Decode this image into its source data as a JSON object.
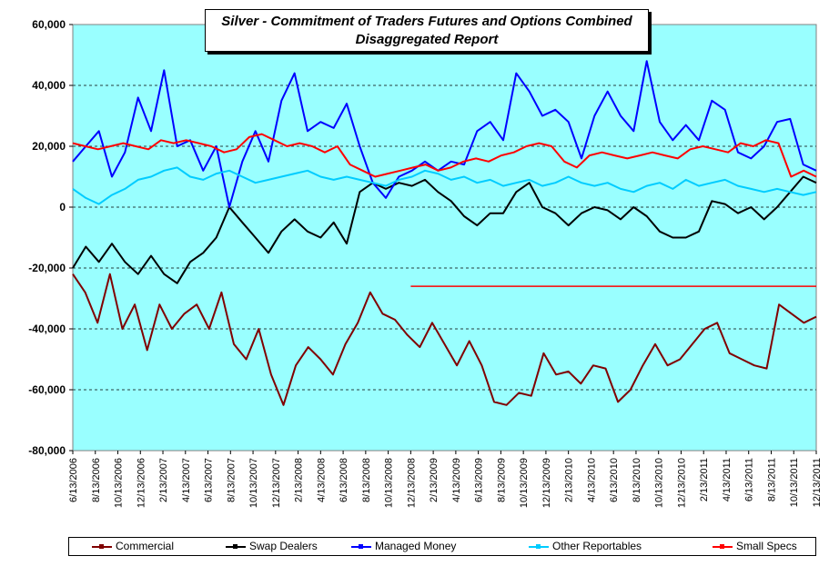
{
  "chart_data": {
    "type": "line",
    "title": "Silver - Commitment of Traders Futures and Options Combined",
    "subtitle": "Disaggregated Report",
    "ylim": [
      -80000,
      60000
    ],
    "y_ticks": [
      "60,000",
      "40,000",
      "20,000",
      "0",
      "-20,000",
      "-40,000",
      "-60,000",
      "-80,000"
    ],
    "x_ticks": [
      "6/13/2006",
      "8/13/2006",
      "10/13/2006",
      "12/13/2006",
      "2/13/2007",
      "4/13/2007",
      "6/13/2007",
      "8/13/2007",
      "10/13/2007",
      "12/13/2007",
      "2/13/2008",
      "4/13/2008",
      "6/13/2008",
      "8/13/2008",
      "10/13/2008",
      "12/13/2008",
      "2/13/2009",
      "4/13/2009",
      "6/13/2009",
      "8/13/2009",
      "10/13/2009",
      "12/13/2009",
      "2/13/2010",
      "4/13/2010",
      "6/13/2010",
      "8/13/2010",
      "10/13/2010",
      "12/13/2010",
      "2/13/2011",
      "4/13/2011",
      "6/13/2011",
      "8/13/2011",
      "10/13/2011",
      "12/13/2011"
    ],
    "grid": "horizontal dashed",
    "plot_background": "#99ffff",
    "reference_line": {
      "value": -26000,
      "from": "12/13/2008",
      "to": "12/13/2011",
      "color": "#ff0000"
    },
    "legend_position": "bottom",
    "series": [
      {
        "name": "Commercial",
        "color": "#800000",
        "values": [
          -22000,
          -28000,
          -38000,
          -22000,
          -40000,
          -32000,
          -47000,
          -32000,
          -40000,
          -35000,
          -32000,
          -40000,
          -28000,
          -45000,
          -50000,
          -40000,
          -55000,
          -65000,
          -52000,
          -46000,
          -50000,
          -55000,
          -45000,
          -38000,
          -28000,
          -35000,
          -37000,
          -42000,
          -46000,
          -38000,
          -45000,
          -52000,
          -44000,
          -52000,
          -64000,
          -65000,
          -61000,
          -62000,
          -48000,
          -55000,
          -54000,
          -58000,
          -52000,
          -53000,
          -64000,
          -60000,
          -52000,
          -45000,
          -52000,
          -50000,
          -45000,
          -40000,
          -38000,
          -48000,
          -50000,
          -52000,
          -53000,
          -32000,
          -35000,
          -38000,
          -36000
        ]
      },
      {
        "name": "Swap Dealers",
        "color": "#000000",
        "values": [
          -20000,
          -13000,
          -18000,
          -12000,
          -18000,
          -22000,
          -16000,
          -22000,
          -25000,
          -18000,
          -15000,
          -10000,
          0,
          -5000,
          -10000,
          -15000,
          -8000,
          -4000,
          -8000,
          -10000,
          -5000,
          -12000,
          5000,
          8000,
          6000,
          8000,
          7000,
          9000,
          5000,
          2000,
          -3000,
          -6000,
          -2000,
          -2000,
          5000,
          8000,
          0,
          -2000,
          -6000,
          -2000,
          0,
          -1000,
          -4000,
          0,
          -3000,
          -8000,
          -10000,
          -10000,
          -8000,
          2000,
          1000,
          -2000,
          0,
          -4000,
          0,
          5000,
          10000,
          8000
        ]
      },
      {
        "name": "Managed Money",
        "color": "#0000ff",
        "values": [
          15000,
          20000,
          25000,
          10000,
          18000,
          36000,
          25000,
          45000,
          20000,
          22000,
          12000,
          20000,
          0,
          15000,
          25000,
          15000,
          35000,
          44000,
          25000,
          28000,
          26000,
          34000,
          20000,
          8000,
          3000,
          10000,
          12000,
          15000,
          12000,
          15000,
          14000,
          25000,
          28000,
          22000,
          44000,
          38000,
          30000,
          32000,
          28000,
          16000,
          30000,
          38000,
          30000,
          25000,
          48000,
          28000,
          22000,
          27000,
          22000,
          35000,
          32000,
          18000,
          16000,
          20000,
          28000,
          29000,
          14000,
          12000
        ]
      },
      {
        "name": "Other Reportables",
        "color": "#00ccff",
        "values": [
          6000,
          3000,
          1000,
          4000,
          6000,
          9000,
          10000,
          12000,
          13000,
          10000,
          9000,
          11000,
          12000,
          10000,
          8000,
          9000,
          10000,
          11000,
          12000,
          10000,
          9000,
          10000,
          9000,
          8000,
          7000,
          9000,
          10000,
          12000,
          11000,
          9000,
          10000,
          8000,
          9000,
          7000,
          8000,
          9000,
          7000,
          8000,
          10000,
          8000,
          7000,
          8000,
          6000,
          5000,
          7000,
          8000,
          6000,
          9000,
          7000,
          8000,
          9000,
          7000,
          6000,
          5000,
          6000,
          5000,
          4000,
          5000
        ]
      },
      {
        "name": "Small Specs",
        "color": "#ff0000",
        "values": [
          21000,
          20000,
          19000,
          20000,
          21000,
          20000,
          19000,
          22000,
          21000,
          22000,
          21000,
          20000,
          18000,
          19000,
          23000,
          24000,
          22000,
          20000,
          21000,
          20000,
          18000,
          20000,
          14000,
          12000,
          10000,
          11000,
          12000,
          13000,
          14000,
          12000,
          13000,
          15000,
          16000,
          15000,
          17000,
          18000,
          20000,
          21000,
          20000,
          15000,
          13000,
          17000,
          18000,
          17000,
          16000,
          17000,
          18000,
          17000,
          16000,
          19000,
          20000,
          19000,
          18000,
          21000,
          20000,
          22000,
          21000,
          10000,
          12000,
          10000
        ]
      }
    ]
  },
  "legend": {
    "items": [
      {
        "label": "Commercial",
        "color": "#800000"
      },
      {
        "label": "Swap Dealers",
        "color": "#000000"
      },
      {
        "label": "Managed Money",
        "color": "#0000ff"
      },
      {
        "label": "Other Reportables",
        "color": "#00ccff"
      },
      {
        "label": "Small Specs",
        "color": "#ff0000"
      }
    ]
  }
}
